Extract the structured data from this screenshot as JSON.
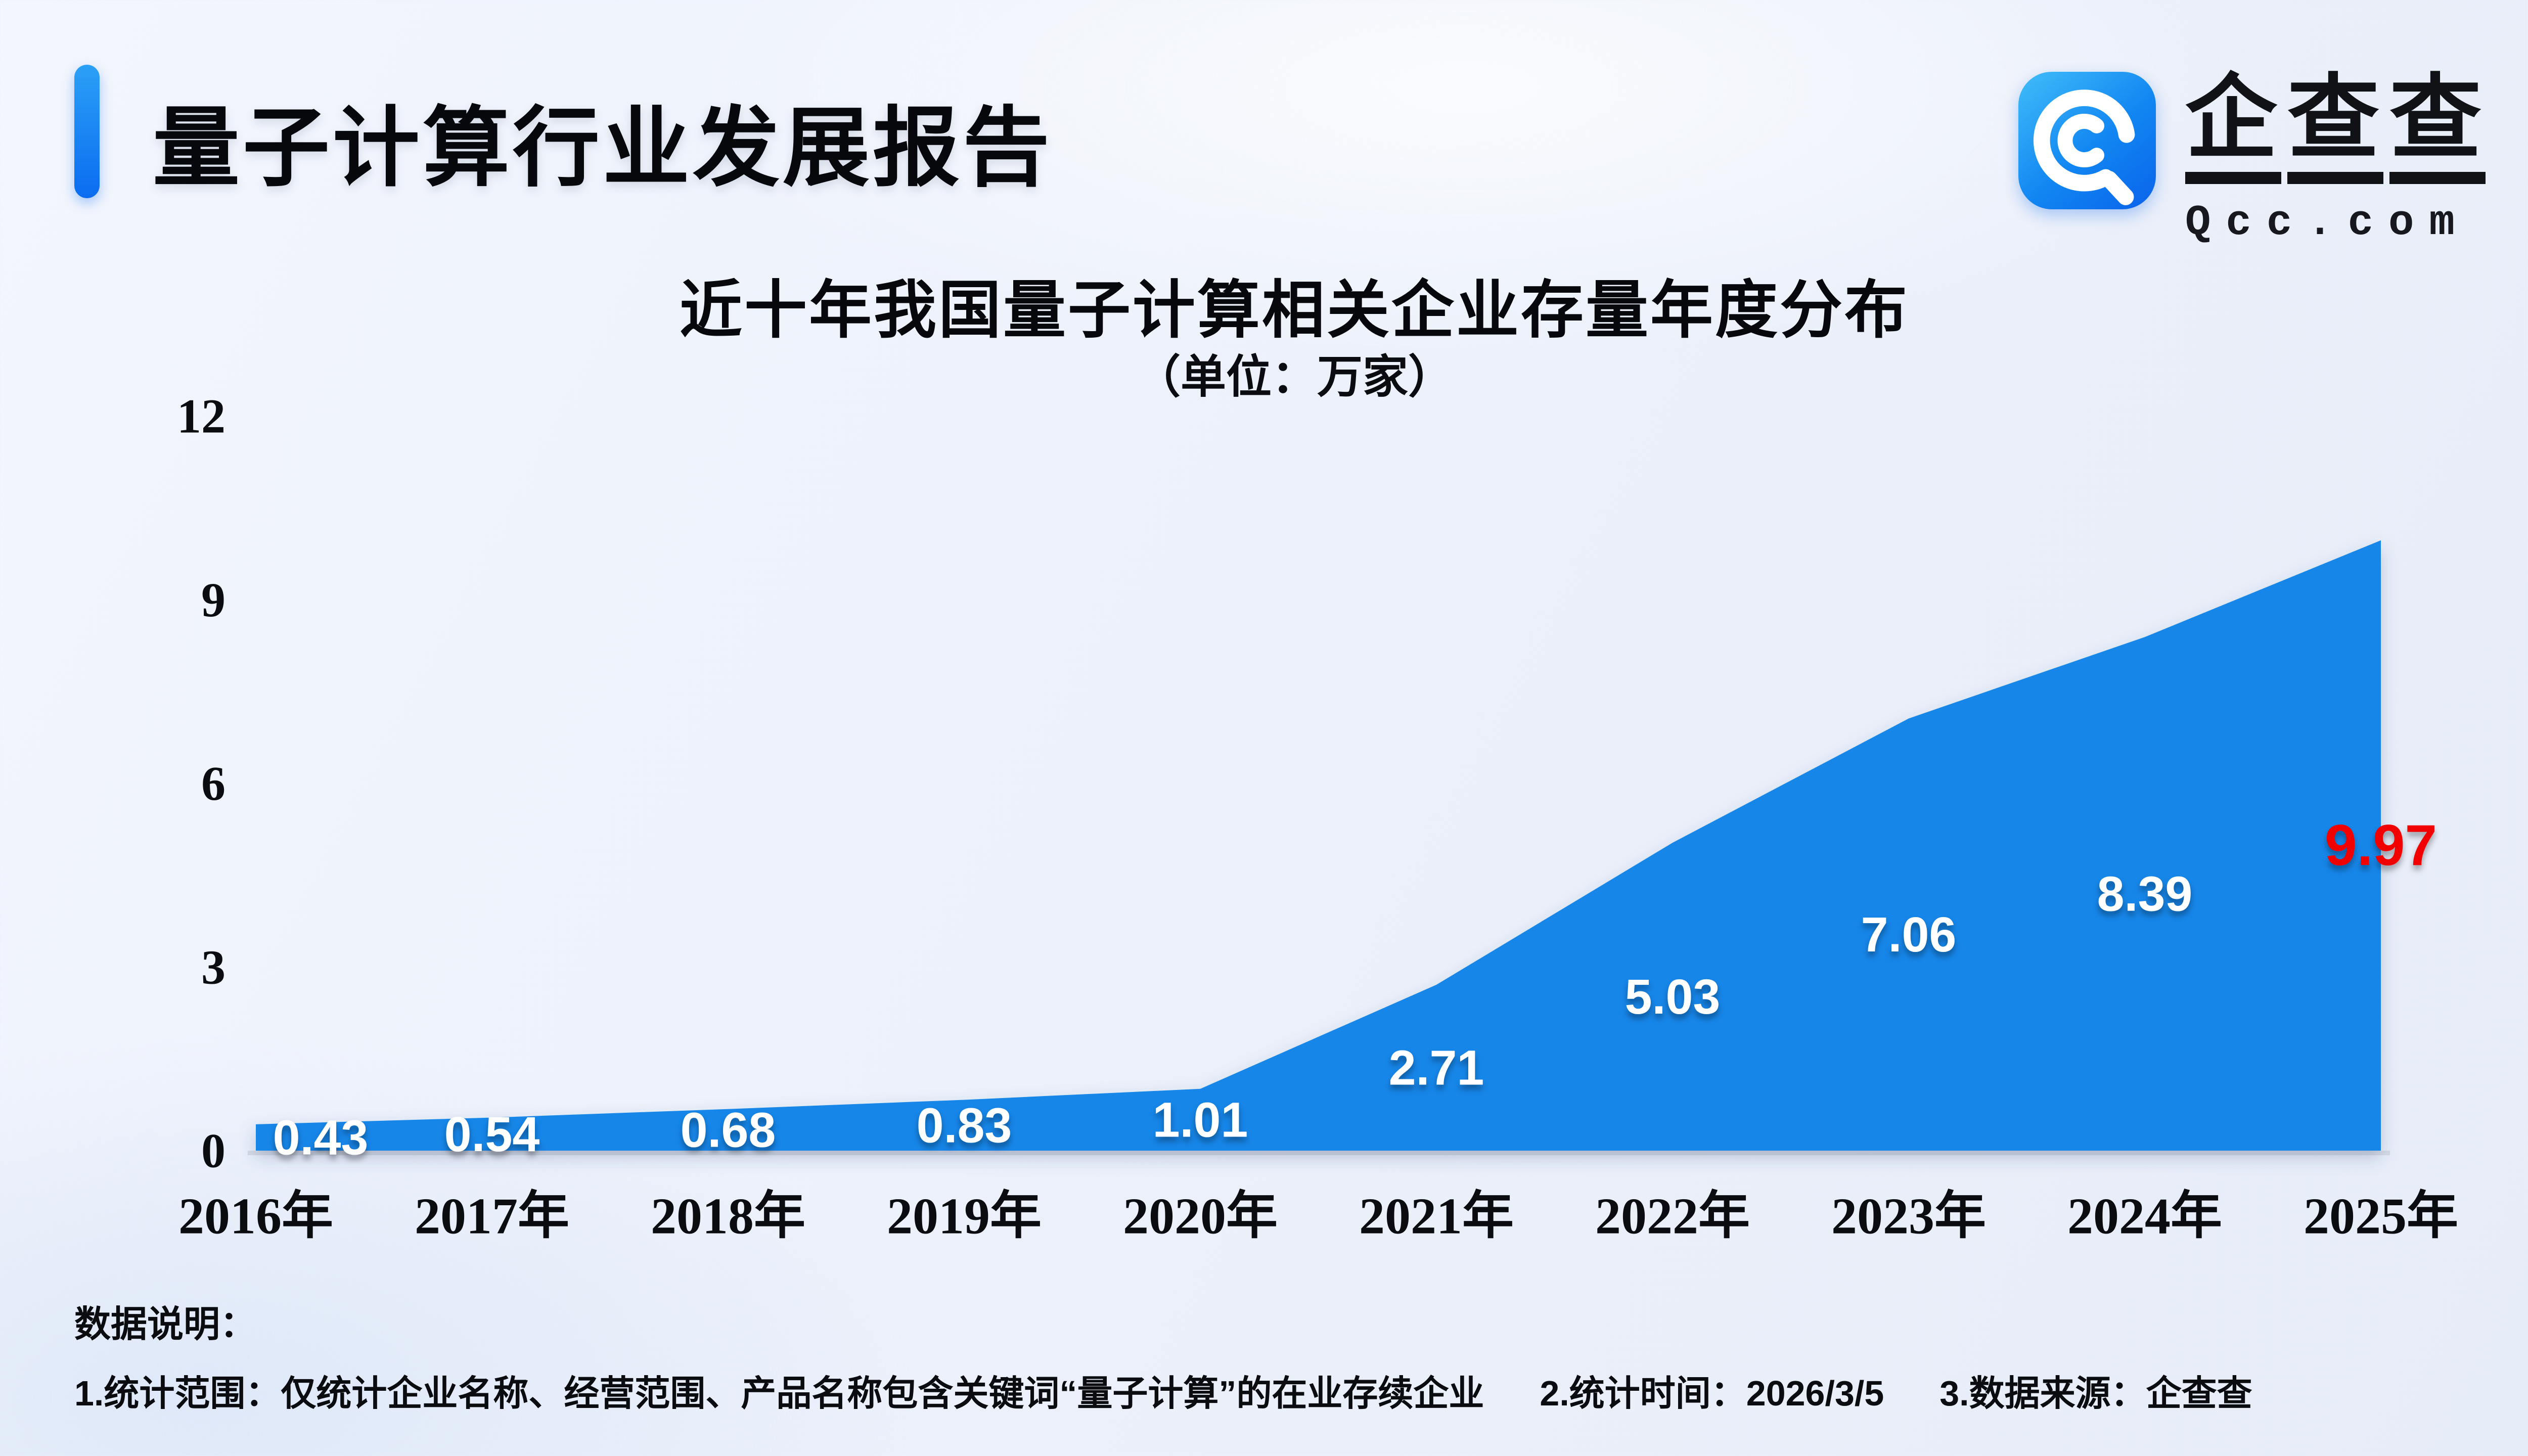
{
  "page": {
    "background_color": "#ecf1fb"
  },
  "header": {
    "title": "量子计算行业发展报告",
    "accent_color": "#0d78f2"
  },
  "logo": {
    "name": "企查查",
    "domain": "Qcc.com",
    "icon": "qcc-spiral-q-icon",
    "color_light": "#3db4f9",
    "color_dark": "#0b66ec"
  },
  "chart_data": {
    "type": "area",
    "title": "近十年我国量子计算相关企业存量年度分布",
    "subtitle": "（单位：万家）",
    "unit": "万家",
    "categories": [
      "2016年",
      "2017年",
      "2018年",
      "2019年",
      "2020年",
      "2021年",
      "2022年",
      "2023年",
      "2024年",
      "2025年"
    ],
    "values": [
      0.43,
      0.54,
      0.68,
      0.83,
      1.01,
      2.71,
      5.03,
      7.06,
      8.39,
      9.97
    ],
    "ylim": [
      0,
      12
    ],
    "yticks": [
      0,
      3,
      6,
      9,
      12
    ],
    "xlabel": "",
    "ylabel": "",
    "grid": false,
    "legend": null,
    "area_color": "#1586e9",
    "label_color": "#ffffff",
    "last_label_color": "#f20000",
    "axis_line_color": "#d7dbe4",
    "tick_color": "#0a0c10"
  },
  "notes": {
    "heading": "数据说明：",
    "items": [
      "1.统计范围：仅统计企业名称、经营范围、产品名称包含关键词“量子计算”的在业存续企业",
      "2.统计时间：2026/3/5",
      "3.数据来源：企查查"
    ]
  }
}
